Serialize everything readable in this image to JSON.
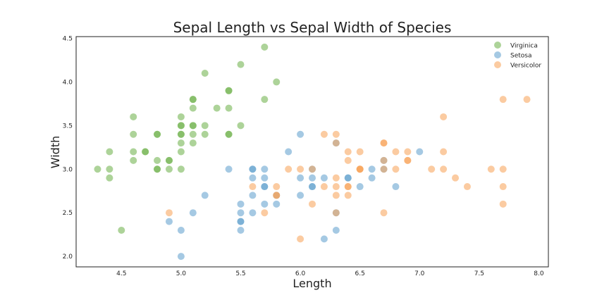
{
  "chart_data": {
    "type": "scatter",
    "title": "Sepal Length vs Sepal Width of Species",
    "xlabel": "Length",
    "ylabel": "Width",
    "xlim": [
      4.12,
      8.08
    ],
    "ylim": [
      1.88,
      4.52
    ],
    "xticks": [
      4.5,
      5.0,
      5.5,
      6.0,
      6.5,
      7.0,
      7.5,
      8.0
    ],
    "yticks": [
      2.0,
      2.5,
      3.0,
      3.5,
      4.0,
      4.5
    ],
    "grid": false,
    "legend_position": "top-right",
    "series": [
      {
        "name": "Virginica",
        "color": "#6aaf45",
        "points": [
          [
            4.3,
            3.0
          ],
          [
            4.4,
            3.0
          ],
          [
            4.4,
            2.9
          ],
          [
            4.4,
            3.2
          ],
          [
            4.5,
            2.3
          ],
          [
            4.6,
            3.1
          ],
          [
            4.6,
            3.2
          ],
          [
            4.6,
            3.4
          ],
          [
            4.6,
            3.6
          ],
          [
            4.7,
            3.2
          ],
          [
            4.7,
            3.2
          ],
          [
            4.8,
            3.0
          ],
          [
            4.8,
            3.0
          ],
          [
            4.8,
            3.1
          ],
          [
            4.8,
            3.4
          ],
          [
            4.8,
            3.4
          ],
          [
            4.9,
            3.0
          ],
          [
            4.9,
            3.1
          ],
          [
            4.9,
            3.1
          ],
          [
            5.0,
            3.0
          ],
          [
            5.0,
            3.2
          ],
          [
            5.0,
            3.3
          ],
          [
            5.0,
            3.4
          ],
          [
            5.0,
            3.4
          ],
          [
            5.0,
            3.5
          ],
          [
            5.0,
            3.5
          ],
          [
            5.0,
            3.6
          ],
          [
            5.1,
            3.3
          ],
          [
            5.1,
            3.4
          ],
          [
            5.1,
            3.5
          ],
          [
            5.1,
            3.5
          ],
          [
            5.1,
            3.7
          ],
          [
            5.1,
            3.8
          ],
          [
            5.1,
            3.8
          ],
          [
            5.2,
            3.4
          ],
          [
            5.2,
            3.5
          ],
          [
            5.2,
            4.1
          ],
          [
            5.3,
            3.7
          ],
          [
            5.4,
            3.4
          ],
          [
            5.4,
            3.4
          ],
          [
            5.4,
            3.7
          ],
          [
            5.4,
            3.9
          ],
          [
            5.4,
            3.9
          ],
          [
            5.5,
            3.5
          ],
          [
            5.5,
            4.2
          ],
          [
            5.7,
            3.8
          ],
          [
            5.7,
            4.4
          ],
          [
            5.8,
            4.0
          ]
        ]
      },
      {
        "name": "Setosa",
        "color": "#5b9ccc",
        "points": [
          [
            4.9,
            2.4
          ],
          [
            5.0,
            2.0
          ],
          [
            5.0,
            2.3
          ],
          [
            5.1,
            2.5
          ],
          [
            5.2,
            2.7
          ],
          [
            5.4,
            3.0
          ],
          [
            5.5,
            2.3
          ],
          [
            5.5,
            2.4
          ],
          [
            5.5,
            2.4
          ],
          [
            5.5,
            2.5
          ],
          [
            5.5,
            2.6
          ],
          [
            5.6,
            2.5
          ],
          [
            5.6,
            2.7
          ],
          [
            5.6,
            2.9
          ],
          [
            5.6,
            3.0
          ],
          [
            5.6,
            3.0
          ],
          [
            5.7,
            2.6
          ],
          [
            5.7,
            2.8
          ],
          [
            5.7,
            2.8
          ],
          [
            5.7,
            2.9
          ],
          [
            5.7,
            3.0
          ],
          [
            5.8,
            2.6
          ],
          [
            5.8,
            2.7
          ],
          [
            5.9,
            3.2
          ],
          [
            6.0,
            2.7
          ],
          [
            6.0,
            2.9
          ],
          [
            6.0,
            3.4
          ],
          [
            6.1,
            2.8
          ],
          [
            6.1,
            2.8
          ],
          [
            6.1,
            2.9
          ],
          [
            6.1,
            3.0
          ],
          [
            6.2,
            2.2
          ],
          [
            6.2,
            2.9
          ],
          [
            6.3,
            2.3
          ],
          [
            6.3,
            2.5
          ],
          [
            6.3,
            3.3
          ],
          [
            6.4,
            2.9
          ],
          [
            6.4,
            2.9
          ],
          [
            6.5,
            2.8
          ],
          [
            6.6,
            2.9
          ],
          [
            6.6,
            3.0
          ],
          [
            6.7,
            3.0
          ],
          [
            6.7,
            3.1
          ],
          [
            6.8,
            2.8
          ],
          [
            7.0,
            3.2
          ]
        ]
      },
      {
        "name": "Versicolor",
        "color": "#f7a054",
        "points": [
          [
            4.9,
            2.5
          ],
          [
            5.6,
            2.8
          ],
          [
            5.7,
            2.5
          ],
          [
            5.8,
            2.7
          ],
          [
            5.8,
            2.7
          ],
          [
            5.8,
            2.8
          ],
          [
            5.9,
            3.0
          ],
          [
            6.0,
            2.2
          ],
          [
            6.0,
            3.0
          ],
          [
            6.1,
            2.6
          ],
          [
            6.1,
            3.0
          ],
          [
            6.2,
            2.8
          ],
          [
            6.2,
            3.4
          ],
          [
            6.3,
            2.5
          ],
          [
            6.3,
            2.7
          ],
          [
            6.3,
            2.8
          ],
          [
            6.3,
            2.9
          ],
          [
            6.3,
            3.3
          ],
          [
            6.3,
            3.4
          ],
          [
            6.4,
            2.7
          ],
          [
            6.4,
            2.8
          ],
          [
            6.4,
            2.8
          ],
          [
            6.4,
            3.1
          ],
          [
            6.4,
            3.2
          ],
          [
            6.5,
            3.0
          ],
          [
            6.5,
            3.0
          ],
          [
            6.5,
            3.0
          ],
          [
            6.5,
            3.2
          ],
          [
            6.7,
            2.5
          ],
          [
            6.7,
            3.0
          ],
          [
            6.7,
            3.1
          ],
          [
            6.7,
            3.3
          ],
          [
            6.7,
            3.3
          ],
          [
            6.8,
            3.0
          ],
          [
            6.8,
            3.2
          ],
          [
            6.9,
            3.1
          ],
          [
            6.9,
            3.1
          ],
          [
            6.9,
            3.2
          ],
          [
            7.1,
            3.0
          ],
          [
            7.2,
            3.0
          ],
          [
            7.2,
            3.2
          ],
          [
            7.2,
            3.6
          ],
          [
            7.3,
            2.9
          ],
          [
            7.4,
            2.8
          ],
          [
            7.6,
            3.0
          ],
          [
            7.7,
            2.6
          ],
          [
            7.7,
            2.8
          ],
          [
            7.7,
            3.0
          ],
          [
            7.7,
            3.8
          ],
          [
            7.9,
            3.8
          ]
        ]
      }
    ]
  }
}
